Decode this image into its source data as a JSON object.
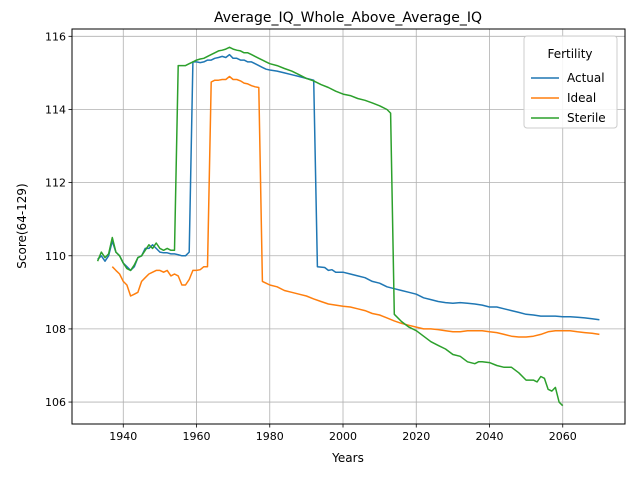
{
  "chart_data": {
    "type": "line",
    "title": "Average_IQ_Whole_Above_Average_IQ",
    "xlabel": "Years",
    "ylabel": "Score(64-129)",
    "xlim": [
      1926,
      2077
    ],
    "ylim": [
      105.4,
      116.2
    ],
    "xticks": [
      1940,
      1960,
      1980,
      2000,
      2020,
      2040,
      2060
    ],
    "yticks": [
      106,
      108,
      110,
      112,
      114,
      116
    ],
    "grid": true,
    "legend": {
      "title": "Fertility",
      "location": "top-right"
    },
    "series": [
      {
        "name": "Actual",
        "color": "#1f77b4",
        "points": [
          [
            1933,
            109.9
          ],
          [
            1934,
            110.0
          ],
          [
            1935,
            109.85
          ],
          [
            1936,
            110.0
          ],
          [
            1937,
            110.4
          ],
          [
            1938,
            110.1
          ],
          [
            1939,
            110.0
          ],
          [
            1940,
            109.8
          ],
          [
            1941,
            109.7
          ],
          [
            1942,
            109.6
          ],
          [
            1943,
            109.7
          ],
          [
            1944,
            109.95
          ],
          [
            1945,
            110.0
          ],
          [
            1946,
            110.2
          ],
          [
            1947,
            110.2
          ],
          [
            1948,
            110.3
          ],
          [
            1949,
            110.2
          ],
          [
            1950,
            110.1
          ],
          [
            1951,
            110.08
          ],
          [
            1952,
            110.08
          ],
          [
            1953,
            110.05
          ],
          [
            1954,
            110.05
          ],
          [
            1955,
            110.03
          ],
          [
            1956,
            110.0
          ],
          [
            1957,
            110.0
          ],
          [
            1958,
            110.1
          ],
          [
            1959,
            115.3
          ],
          [
            1960,
            115.3
          ],
          [
            1961,
            115.28
          ],
          [
            1962,
            115.3
          ],
          [
            1963,
            115.35
          ],
          [
            1964,
            115.35
          ],
          [
            1965,
            115.4
          ],
          [
            1966,
            115.42
          ],
          [
            1967,
            115.45
          ],
          [
            1968,
            115.42
          ],
          [
            1969,
            115.5
          ],
          [
            1970,
            115.4
          ],
          [
            1971,
            115.4
          ],
          [
            1972,
            115.35
          ],
          [
            1973,
            115.35
          ],
          [
            1974,
            115.3
          ],
          [
            1975,
            115.3
          ],
          [
            1976,
            115.25
          ],
          [
            1977,
            115.2
          ],
          [
            1978,
            115.15
          ],
          [
            1979,
            115.1
          ],
          [
            1980,
            115.08
          ],
          [
            1982,
            115.05
          ],
          [
            1984,
            115.0
          ],
          [
            1986,
            114.95
          ],
          [
            1988,
            114.9
          ],
          [
            1990,
            114.85
          ],
          [
            1992,
            114.8
          ],
          [
            1993,
            109.7
          ],
          [
            1995,
            109.68
          ],
          [
            1996,
            109.6
          ],
          [
            1997,
            109.62
          ],
          [
            1998,
            109.55
          ],
          [
            2000,
            109.55
          ],
          [
            2002,
            109.5
          ],
          [
            2004,
            109.45
          ],
          [
            2006,
            109.4
          ],
          [
            2008,
            109.3
          ],
          [
            2010,
            109.25
          ],
          [
            2012,
            109.15
          ],
          [
            2014,
            109.1
          ],
          [
            2016,
            109.05
          ],
          [
            2018,
            109.0
          ],
          [
            2020,
            108.95
          ],
          [
            2022,
            108.85
          ],
          [
            2024,
            108.8
          ],
          [
            2026,
            108.75
          ],
          [
            2028,
            108.72
          ],
          [
            2030,
            108.7
          ],
          [
            2032,
            108.72
          ],
          [
            2034,
            108.7
          ],
          [
            2036,
            108.68
          ],
          [
            2038,
            108.65
          ],
          [
            2040,
            108.6
          ],
          [
            2042,
            108.6
          ],
          [
            2044,
            108.55
          ],
          [
            2046,
            108.5
          ],
          [
            2048,
            108.45
          ],
          [
            2050,
            108.4
          ],
          [
            2052,
            108.38
          ],
          [
            2054,
            108.35
          ],
          [
            2056,
            108.35
          ],
          [
            2058,
            108.35
          ],
          [
            2060,
            108.33
          ],
          [
            2062,
            108.33
          ],
          [
            2064,
            108.32
          ],
          [
            2066,
            108.3
          ],
          [
            2068,
            108.28
          ],
          [
            2070,
            108.25
          ]
        ]
      },
      {
        "name": "Ideal",
        "color": "#ff7f0e",
        "points": [
          [
            1937,
            109.7
          ],
          [
            1938,
            109.6
          ],
          [
            1939,
            109.5
          ],
          [
            1940,
            109.3
          ],
          [
            1941,
            109.2
          ],
          [
            1942,
            108.9
          ],
          [
            1943,
            108.95
          ],
          [
            1944,
            109.0
          ],
          [
            1945,
            109.3
          ],
          [
            1946,
            109.4
          ],
          [
            1947,
            109.5
          ],
          [
            1948,
            109.55
          ],
          [
            1949,
            109.6
          ],
          [
            1950,
            109.6
          ],
          [
            1951,
            109.55
          ],
          [
            1952,
            109.6
          ],
          [
            1953,
            109.45
          ],
          [
            1954,
            109.5
          ],
          [
            1955,
            109.45
          ],
          [
            1956,
            109.2
          ],
          [
            1957,
            109.2
          ],
          [
            1958,
            109.35
          ],
          [
            1959,
            109.6
          ],
          [
            1960,
            109.6
          ],
          [
            1961,
            109.62
          ],
          [
            1962,
            109.7
          ],
          [
            1963,
            109.7
          ],
          [
            1964,
            114.75
          ],
          [
            1965,
            114.8
          ],
          [
            1966,
            114.8
          ],
          [
            1967,
            114.82
          ],
          [
            1968,
            114.82
          ],
          [
            1969,
            114.9
          ],
          [
            1970,
            114.82
          ],
          [
            1971,
            114.82
          ],
          [
            1972,
            114.78
          ],
          [
            1973,
            114.72
          ],
          [
            1974,
            114.7
          ],
          [
            1975,
            114.65
          ],
          [
            1976,
            114.62
          ],
          [
            1977,
            114.6
          ],
          [
            1978,
            109.3
          ],
          [
            1979,
            109.25
          ],
          [
            1980,
            109.2
          ],
          [
            1982,
            109.15
          ],
          [
            1984,
            109.05
          ],
          [
            1986,
            109.0
          ],
          [
            1988,
            108.95
          ],
          [
            1990,
            108.9
          ],
          [
            1992,
            108.82
          ],
          [
            1994,
            108.75
          ],
          [
            1996,
            108.68
          ],
          [
            1998,
            108.65
          ],
          [
            2000,
            108.62
          ],
          [
            2002,
            108.6
          ],
          [
            2004,
            108.55
          ],
          [
            2006,
            108.5
          ],
          [
            2008,
            108.42
          ],
          [
            2010,
            108.38
          ],
          [
            2012,
            108.3
          ],
          [
            2014,
            108.22
          ],
          [
            2016,
            108.15
          ],
          [
            2018,
            108.1
          ],
          [
            2020,
            108.05
          ],
          [
            2022,
            108.0
          ],
          [
            2024,
            108.0
          ],
          [
            2026,
            107.98
          ],
          [
            2028,
            107.95
          ],
          [
            2030,
            107.92
          ],
          [
            2032,
            107.92
          ],
          [
            2034,
            107.95
          ],
          [
            2036,
            107.95
          ],
          [
            2038,
            107.95
          ],
          [
            2040,
            107.92
          ],
          [
            2042,
            107.9
          ],
          [
            2044,
            107.85
          ],
          [
            2046,
            107.8
          ],
          [
            2048,
            107.78
          ],
          [
            2050,
            107.78
          ],
          [
            2052,
            107.8
          ],
          [
            2054,
            107.85
          ],
          [
            2056,
            107.92
          ],
          [
            2058,
            107.95
          ],
          [
            2060,
            107.95
          ],
          [
            2062,
            107.95
          ],
          [
            2064,
            107.92
          ],
          [
            2066,
            107.9
          ],
          [
            2068,
            107.88
          ],
          [
            2070,
            107.85
          ]
        ]
      },
      {
        "name": "Sterile",
        "color": "#2ca02c",
        "points": [
          [
            1933,
            109.85
          ],
          [
            1934,
            110.1
          ],
          [
            1935,
            109.95
          ],
          [
            1936,
            110.05
          ],
          [
            1937,
            110.5
          ],
          [
            1938,
            110.1
          ],
          [
            1939,
            110.0
          ],
          [
            1940,
            109.8
          ],
          [
            1941,
            109.65
          ],
          [
            1942,
            109.6
          ],
          [
            1943,
            109.75
          ],
          [
            1944,
            109.95
          ],
          [
            1945,
            110.0
          ],
          [
            1946,
            110.15
          ],
          [
            1947,
            110.3
          ],
          [
            1948,
            110.2
          ],
          [
            1949,
            110.35
          ],
          [
            1950,
            110.2
          ],
          [
            1951,
            110.15
          ],
          [
            1952,
            110.2
          ],
          [
            1953,
            110.15
          ],
          [
            1954,
            110.15
          ],
          [
            1955,
            115.2
          ],
          [
            1956,
            115.2
          ],
          [
            1957,
            115.2
          ],
          [
            1958,
            115.25
          ],
          [
            1959,
            115.3
          ],
          [
            1960,
            115.35
          ],
          [
            1961,
            115.38
          ],
          [
            1962,
            115.4
          ],
          [
            1963,
            115.45
          ],
          [
            1964,
            115.5
          ],
          [
            1965,
            115.55
          ],
          [
            1966,
            115.6
          ],
          [
            1967,
            115.62
          ],
          [
            1968,
            115.65
          ],
          [
            1969,
            115.7
          ],
          [
            1970,
            115.65
          ],
          [
            1971,
            115.62
          ],
          [
            1972,
            115.6
          ],
          [
            1973,
            115.55
          ],
          [
            1974,
            115.55
          ],
          [
            1975,
            115.5
          ],
          [
            1976,
            115.45
          ],
          [
            1977,
            115.4
          ],
          [
            1978,
            115.35
          ],
          [
            1979,
            115.3
          ],
          [
            1980,
            115.25
          ],
          [
            1982,
            115.2
          ],
          [
            1984,
            115.12
          ],
          [
            1986,
            115.05
          ],
          [
            1988,
            114.95
          ],
          [
            1990,
            114.85
          ],
          [
            1992,
            114.78
          ],
          [
            1994,
            114.68
          ],
          [
            1996,
            114.6
          ],
          [
            1998,
            114.5
          ],
          [
            2000,
            114.42
          ],
          [
            2002,
            114.38
          ],
          [
            2004,
            114.3
          ],
          [
            2006,
            114.25
          ],
          [
            2008,
            114.18
          ],
          [
            2010,
            114.1
          ],
          [
            2012,
            114.0
          ],
          [
            2013,
            113.9
          ],
          [
            2014,
            108.4
          ],
          [
            2016,
            108.2
          ],
          [
            2018,
            108.05
          ],
          [
            2020,
            107.95
          ],
          [
            2022,
            107.8
          ],
          [
            2024,
            107.65
          ],
          [
            2026,
            107.55
          ],
          [
            2028,
            107.45
          ],
          [
            2030,
            107.3
          ],
          [
            2032,
            107.25
          ],
          [
            2034,
            107.1
          ],
          [
            2036,
            107.05
          ],
          [
            2037,
            107.1
          ],
          [
            2038,
            107.1
          ],
          [
            2040,
            107.08
          ],
          [
            2042,
            107.0
          ],
          [
            2044,
            106.95
          ],
          [
            2046,
            106.95
          ],
          [
            2048,
            106.8
          ],
          [
            2050,
            106.6
          ],
          [
            2052,
            106.6
          ],
          [
            2053,
            106.55
          ],
          [
            2054,
            106.7
          ],
          [
            2055,
            106.65
          ],
          [
            2056,
            106.35
          ],
          [
            2057,
            106.3
          ],
          [
            2058,
            106.4
          ],
          [
            2059,
            106.0
          ],
          [
            2060,
            105.9
          ]
        ]
      }
    ]
  }
}
